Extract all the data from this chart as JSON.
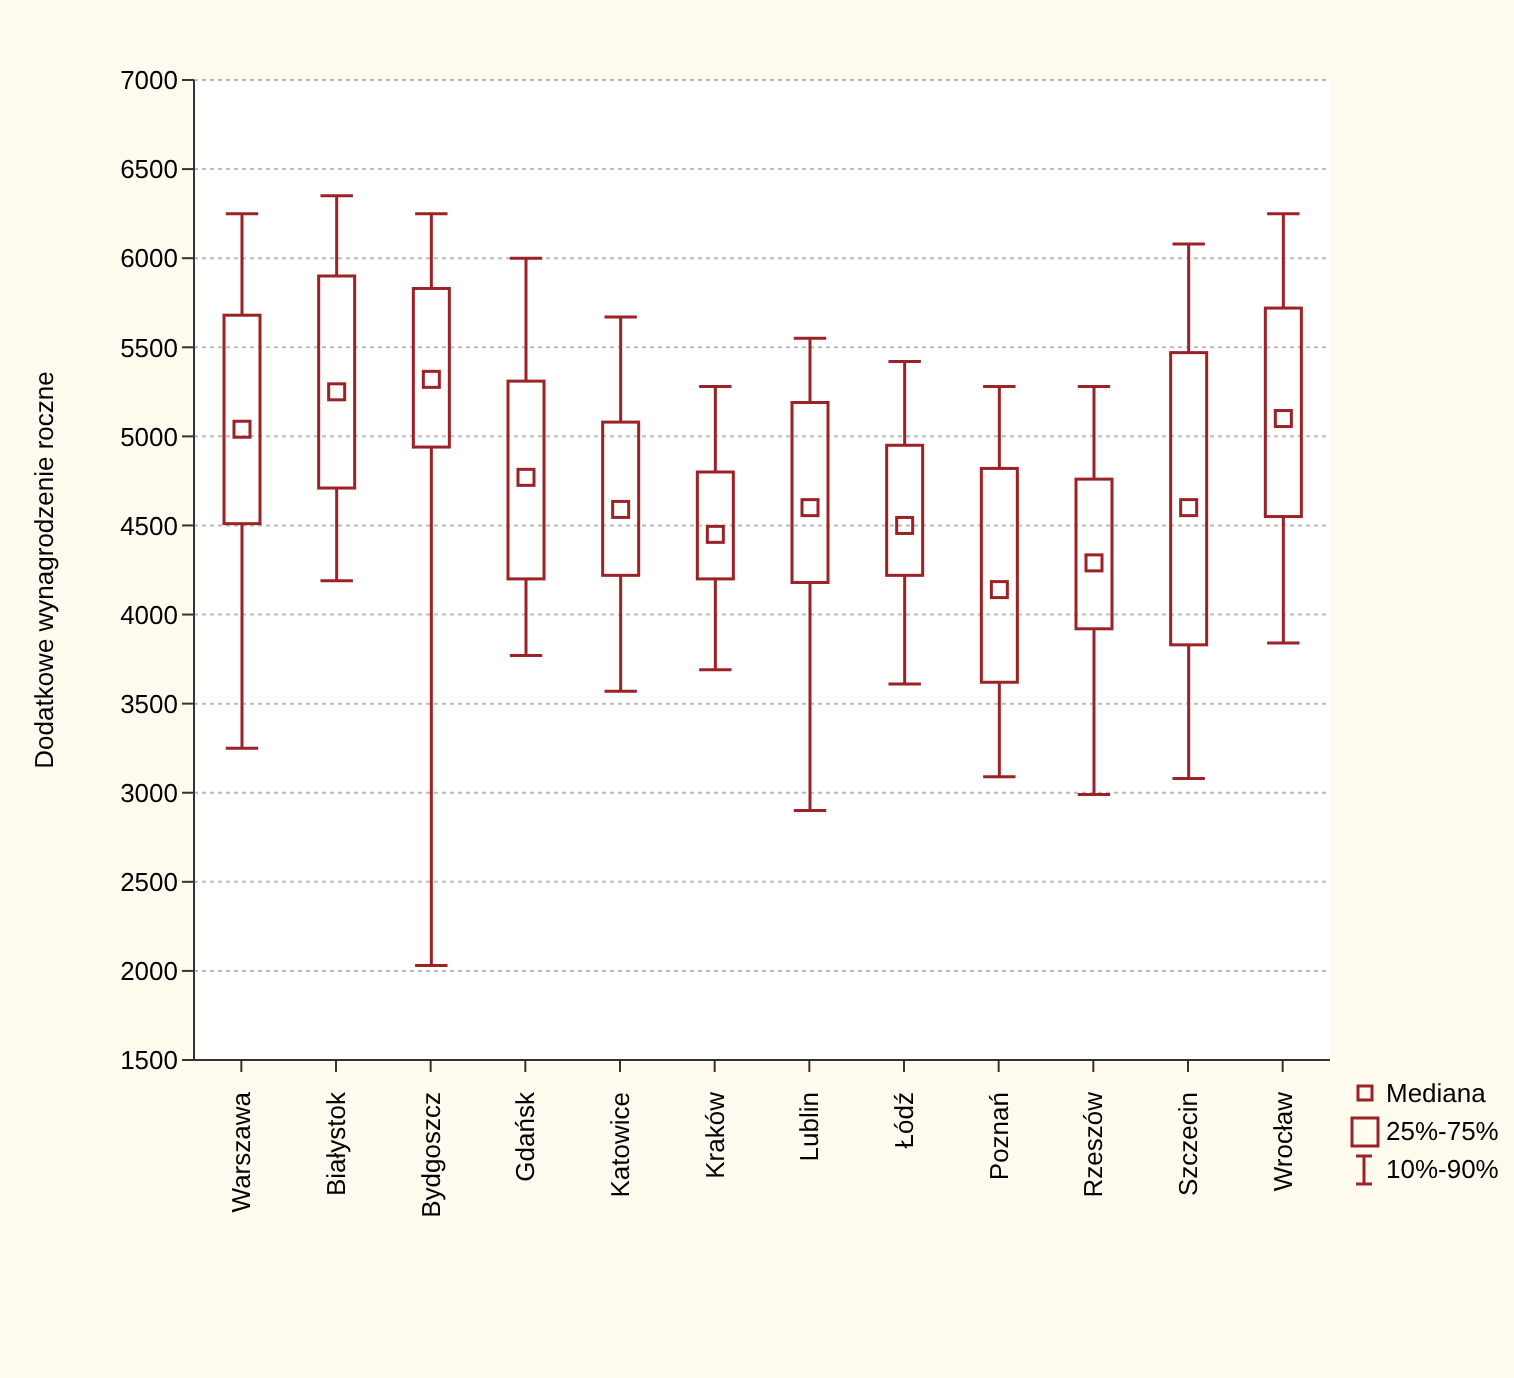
{
  "chart_data": {
    "type": "box",
    "ylabel": "Dodatkowe wynagrodzenie roczne",
    "color": "#9b2226",
    "marker": "square",
    "grid": "y",
    "categories": [
      "Warszawa",
      "Białystok",
      "Bydgoszcz",
      "Gdańsk",
      "Katowice",
      "Kraków",
      "Lublin",
      "Łódź",
      "Poznań",
      "Rzeszów",
      "Szczecin",
      "Wrocław"
    ],
    "boxes": [
      {
        "low": 3250,
        "q1": 4510,
        "median": 5040,
        "q3": 5680,
        "high": 6250
      },
      {
        "low": 4190,
        "q1": 4710,
        "median": 5250,
        "q3": 5900,
        "high": 6350
      },
      {
        "low": 2030,
        "q1": 4940,
        "median": 5320,
        "q3": 5830,
        "high": 6250
      },
      {
        "low": 3770,
        "q1": 4200,
        "median": 4770,
        "q3": 5310,
        "high": 6000
      },
      {
        "low": 3570,
        "q1": 4220,
        "median": 4590,
        "q3": 5080,
        "high": 5670
      },
      {
        "low": 3690,
        "q1": 4200,
        "median": 4450,
        "q3": 4800,
        "high": 5280
      },
      {
        "low": 2900,
        "q1": 4180,
        "median": 4600,
        "q3": 5190,
        "high": 5550
      },
      {
        "low": 3610,
        "q1": 4220,
        "median": 4500,
        "q3": 4950,
        "high": 5420
      },
      {
        "low": 3090,
        "q1": 3620,
        "median": 4140,
        "q3": 4820,
        "high": 5280
      },
      {
        "low": 2990,
        "q1": 3920,
        "median": 4290,
        "q3": 4760,
        "high": 5280
      },
      {
        "low": 3080,
        "q1": 3830,
        "median": 4600,
        "q3": 5470,
        "high": 6080
      },
      {
        "low": 3840,
        "q1": 4550,
        "median": 5100,
        "q3": 5720,
        "high": 6250
      }
    ],
    "ylim": [
      1500,
      7000
    ],
    "yticks": [
      1500,
      2000,
      2500,
      3000,
      3500,
      4000,
      4500,
      5000,
      5500,
      6000,
      6500,
      7000
    ],
    "annotations": [
      "Mediana",
      "25%-75%",
      "10%-90%"
    ]
  }
}
